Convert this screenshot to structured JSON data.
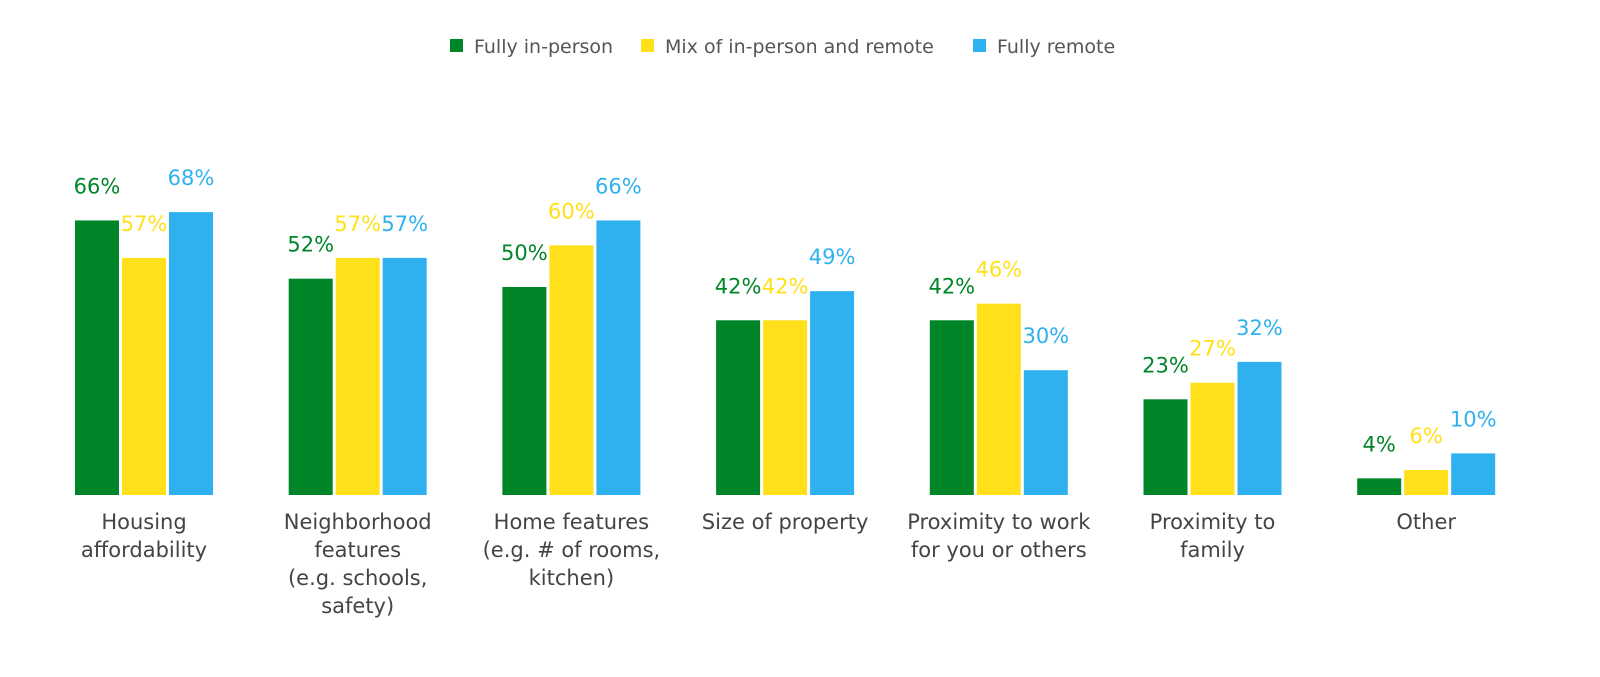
{
  "chart_data": {
    "type": "bar",
    "title": "",
    "xlabel": "",
    "ylabel": "",
    "ylim": [
      0,
      100
    ],
    "grid": false,
    "legend_position": "top-center",
    "categories": [
      [
        "Housing",
        "affordability"
      ],
      [
        "Neighborhood",
        "features",
        "(e.g. schools,",
        "safety)"
      ],
      [
        "Home features",
        "(e.g. # of rooms,",
        "kitchen)"
      ],
      [
        "Size of property"
      ],
      [
        "Proximity to work",
        "for you or others"
      ],
      [
        "Proximity to",
        "family"
      ],
      [
        "Other"
      ]
    ],
    "series": [
      {
        "name": "Fully in-person",
        "color": "#008528",
        "values": [
          66,
          52,
          50,
          42,
          42,
          23,
          4
        ],
        "labels": [
          "66%",
          "52%",
          "50%",
          "42%",
          "42%",
          "23%",
          "4%"
        ]
      },
      {
        "name": "Mix of in-person and remote",
        "color": "#FFE01B",
        "values": [
          57,
          57,
          60,
          42,
          46,
          27,
          6
        ],
        "labels": [
          "57%",
          "57%",
          "60%",
          "42%",
          "46%",
          "27%",
          "6%"
        ]
      },
      {
        "name": "Fully remote",
        "color": "#2FB1F0",
        "values": [
          68,
          57,
          66,
          49,
          30,
          32,
          10
        ],
        "labels": [
          "68%",
          "57%",
          "66%",
          "49%",
          "30%",
          "32%",
          "10%"
        ]
      }
    ]
  }
}
